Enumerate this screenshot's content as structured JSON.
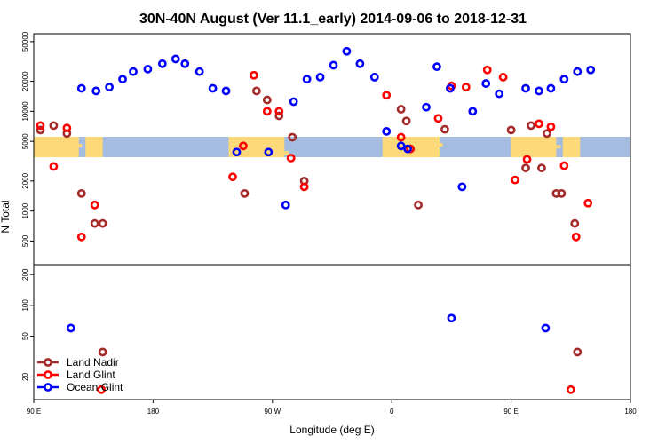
{
  "chart_data": {
    "type": "scatter",
    "title": "30N-40N August (Ver 11.1_early)   2014-09-06 to 2018-12-31",
    "xlabel": "Longitude (deg E)",
    "ylabel": "N Total",
    "x_ticks": [
      {
        "v": 90,
        "label": "90 E"
      },
      {
        "v": 180,
        "label": "180"
      },
      {
        "v": 270,
        "label": "90 W"
      },
      {
        "v": 360,
        "label": "0"
      },
      {
        "v": 450,
        "label": "90 E"
      },
      {
        "v": 540,
        "label": "180"
      }
    ],
    "xlim": [
      90,
      540
    ],
    "top_panel": {
      "scale": "log",
      "ylim": [
        290,
        60000
      ],
      "y_ticks": [
        {
          "v": 500,
          "label": "500"
        },
        {
          "v": 1000,
          "label": "1000"
        },
        {
          "v": 2000,
          "label": "2000"
        },
        {
          "v": 5000,
          "label": "5000"
        },
        {
          "v": 10000,
          "label": "10000"
        },
        {
          "v": 20000,
          "label": "20000"
        },
        {
          "v": 50000,
          "label": "50000"
        }
      ]
    },
    "bottom_panel": {
      "scale": "log",
      "ylim": [
        12,
        250
      ],
      "y_ticks": [
        {
          "v": 20,
          "label": "20"
        },
        {
          "v": 50,
          "label": "50"
        },
        {
          "v": 100,
          "label": "100"
        },
        {
          "v": 200,
          "label": "200"
        }
      ]
    },
    "map_strip": {
      "land_color": "#fdd97a",
      "ocean_color": "#a4bcdf"
    },
    "legend": {
      "position": "bottom-left",
      "entries": [
        {
          "name": "Land Nadir",
          "color": "#a52a2a"
        },
        {
          "name": "Land Glint",
          "color": "#ff0000"
        },
        {
          "name": "Ocean Glint",
          "color": "#0000ff"
        }
      ]
    },
    "series": [
      {
        "name": "Land Nadir",
        "color": "#a52a2a",
        "top": [
          [
            95,
            6500
          ],
          [
            105,
            7200
          ],
          [
            115,
            6000
          ],
          [
            126,
            1500
          ],
          [
            136,
            750
          ],
          [
            142,
            750
          ],
          [
            249,
            1500
          ],
          [
            258,
            16000
          ],
          [
            266,
            13000
          ],
          [
            275,
            9000
          ],
          [
            285,
            5500
          ],
          [
            294,
            2000
          ],
          [
            367,
            10500
          ],
          [
            371,
            8000
          ],
          [
            374,
            4200
          ],
          [
            380,
            1150
          ],
          [
            400,
            6600
          ],
          [
            450,
            6500
          ],
          [
            465,
            7200
          ],
          [
            477,
            6000
          ],
          [
            488,
            1500
          ],
          [
            498,
            750
          ],
          [
            461,
            2700
          ],
          [
            473,
            2700
          ],
          [
            484,
            1500
          ]
        ],
        "bottom": [
          [
            142,
            35
          ],
          [
            500,
            35
          ]
        ]
      },
      {
        "name": "Land Glint",
        "color": "#ff0000",
        "top": [
          [
            95,
            7200
          ],
          [
            105,
            2800
          ],
          [
            115,
            6800
          ],
          [
            126,
            550
          ],
          [
            136,
            1150
          ],
          [
            240,
            2200
          ],
          [
            248,
            4500
          ],
          [
            256,
            23000
          ],
          [
            266,
            10000
          ],
          [
            275,
            10000
          ],
          [
            284,
            3400
          ],
          [
            294,
            1750
          ],
          [
            356,
            14500
          ],
          [
            367,
            5500
          ],
          [
            374,
            4200
          ],
          [
            395,
            8500
          ],
          [
            405,
            18000
          ],
          [
            416,
            17500
          ],
          [
            432,
            26000
          ],
          [
            444,
            22000
          ],
          [
            453,
            2050
          ],
          [
            462,
            3300
          ],
          [
            471,
            7500
          ],
          [
            480,
            7000
          ],
          [
            490,
            2850
          ],
          [
            499,
            550
          ],
          [
            508,
            1200
          ]
        ],
        "bottom": [
          [
            141,
            15
          ],
          [
            495,
            15
          ]
        ]
      },
      {
        "name": "Ocean Glint",
        "color": "#0000ff",
        "top": [
          [
            126,
            17000
          ],
          [
            137,
            16000
          ],
          [
            147,
            17500
          ],
          [
            157,
            21000
          ],
          [
            165,
            25000
          ],
          [
            176,
            26500
          ],
          [
            187,
            30000
          ],
          [
            197,
            33500
          ],
          [
            204,
            30000
          ],
          [
            215,
            25000
          ],
          [
            225,
            17000
          ],
          [
            235,
            16000
          ],
          [
            243,
            3900
          ],
          [
            267,
            3900
          ],
          [
            280,
            1150
          ],
          [
            286,
            12500
          ],
          [
            296,
            21000
          ],
          [
            306,
            22000
          ],
          [
            316,
            29000
          ],
          [
            326,
            40000
          ],
          [
            336,
            30000
          ],
          [
            347,
            22000
          ],
          [
            356,
            6300
          ],
          [
            367,
            4500
          ],
          [
            372,
            4200
          ],
          [
            386,
            11000
          ],
          [
            394,
            28000
          ],
          [
            404,
            17000
          ],
          [
            413,
            1750
          ],
          [
            421,
            10000
          ],
          [
            431,
            19000
          ],
          [
            441,
            15000
          ],
          [
            461,
            17000
          ],
          [
            471,
            16000
          ],
          [
            480,
            17000
          ],
          [
            490,
            21000
          ],
          [
            500,
            25000
          ],
          [
            510,
            26000
          ]
        ],
        "bottom": [
          [
            118,
            60
          ],
          [
            405,
            75
          ],
          [
            476,
            60
          ]
        ]
      }
    ]
  }
}
